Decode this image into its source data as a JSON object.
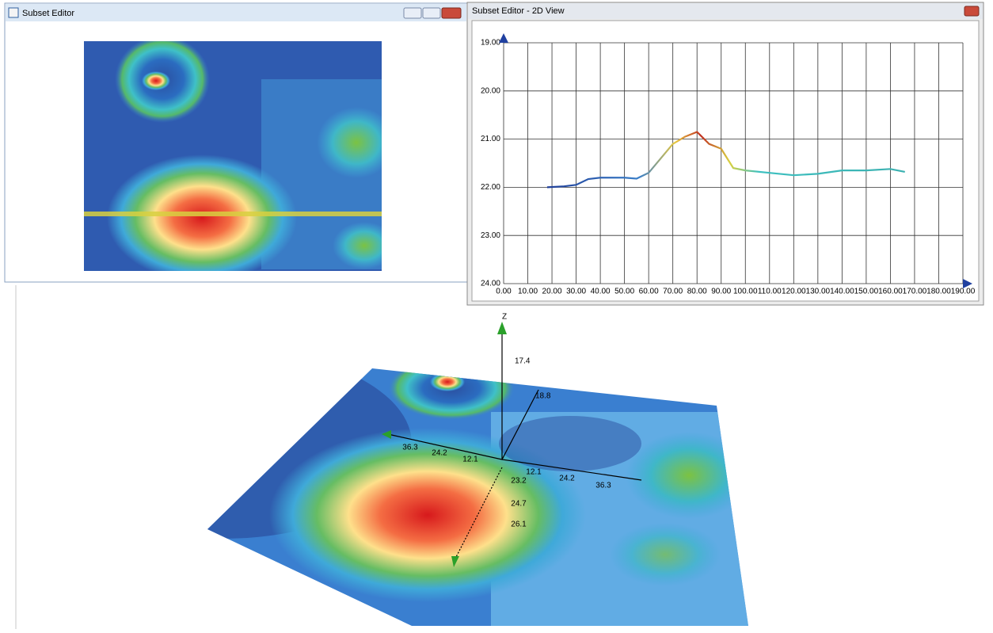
{
  "windows": {
    "subset_editor": {
      "title": "Subset Editor"
    },
    "view_2d": {
      "title": "Subset Editor - 2D View"
    }
  },
  "chart_data": {
    "type": "line",
    "x": [
      18,
      25,
      30,
      35,
      40,
      50,
      55,
      60,
      65,
      70,
      75,
      80,
      85,
      90,
      95,
      100,
      110,
      120,
      130,
      140,
      150,
      160,
      166
    ],
    "values": [
      22.0,
      21.98,
      21.95,
      21.83,
      21.8,
      21.8,
      21.82,
      21.7,
      21.4,
      21.1,
      20.95,
      20.85,
      21.1,
      21.2,
      21.6,
      21.65,
      21.7,
      21.75,
      21.72,
      21.65,
      21.65,
      21.62,
      21.68
    ],
    "xlim": [
      0,
      190
    ],
    "ylim": [
      19,
      24
    ],
    "y_inverted": true,
    "grid": true,
    "xticks": [
      {
        "value": 0,
        "label": "0.00"
      },
      {
        "value": 10,
        "label": "10.00"
      },
      {
        "value": 20,
        "label": "20.00"
      },
      {
        "value": 30,
        "label": "30.00"
      },
      {
        "value": 40,
        "label": "40.00"
      },
      {
        "value": 50,
        "label": "50.00"
      },
      {
        "value": 60,
        "label": "60.00"
      },
      {
        "value": 70,
        "label": "70.00"
      },
      {
        "value": 80,
        "label": "80.00"
      },
      {
        "value": 90,
        "label": "90.00"
      },
      {
        "value": 100,
        "label": "100.00"
      },
      {
        "value": 110,
        "label": "110.00"
      },
      {
        "value": 120,
        "label": "120.00"
      },
      {
        "value": 130,
        "label": "130.00"
      },
      {
        "value": 140,
        "label": "140.00"
      },
      {
        "value": 150,
        "label": "150.00"
      },
      {
        "value": 160,
        "label": "160.00"
      },
      {
        "value": 170,
        "label": "170.00"
      },
      {
        "value": 180,
        "label": "180.00"
      },
      {
        "value": 190,
        "label": "190.00"
      }
    ],
    "yticks": [
      {
        "value": 19,
        "label": "19.00"
      },
      {
        "value": 20,
        "label": "20.00"
      },
      {
        "value": 21,
        "label": "21.00"
      },
      {
        "value": 22,
        "label": "22.00"
      },
      {
        "value": 23,
        "label": "23.00"
      },
      {
        "value": 24,
        "label": "24.00"
      }
    ]
  },
  "view_3d": {
    "axis_title": "Z",
    "z_labels": [
      "17.4",
      "18.8"
    ],
    "left_labels": [
      "36.3",
      "24.2",
      "12.1"
    ],
    "right_labels": [
      "12.1",
      "24.2",
      "36.3"
    ],
    "depth_labels": [
      "23.2",
      "24.7",
      "26.1"
    ]
  }
}
